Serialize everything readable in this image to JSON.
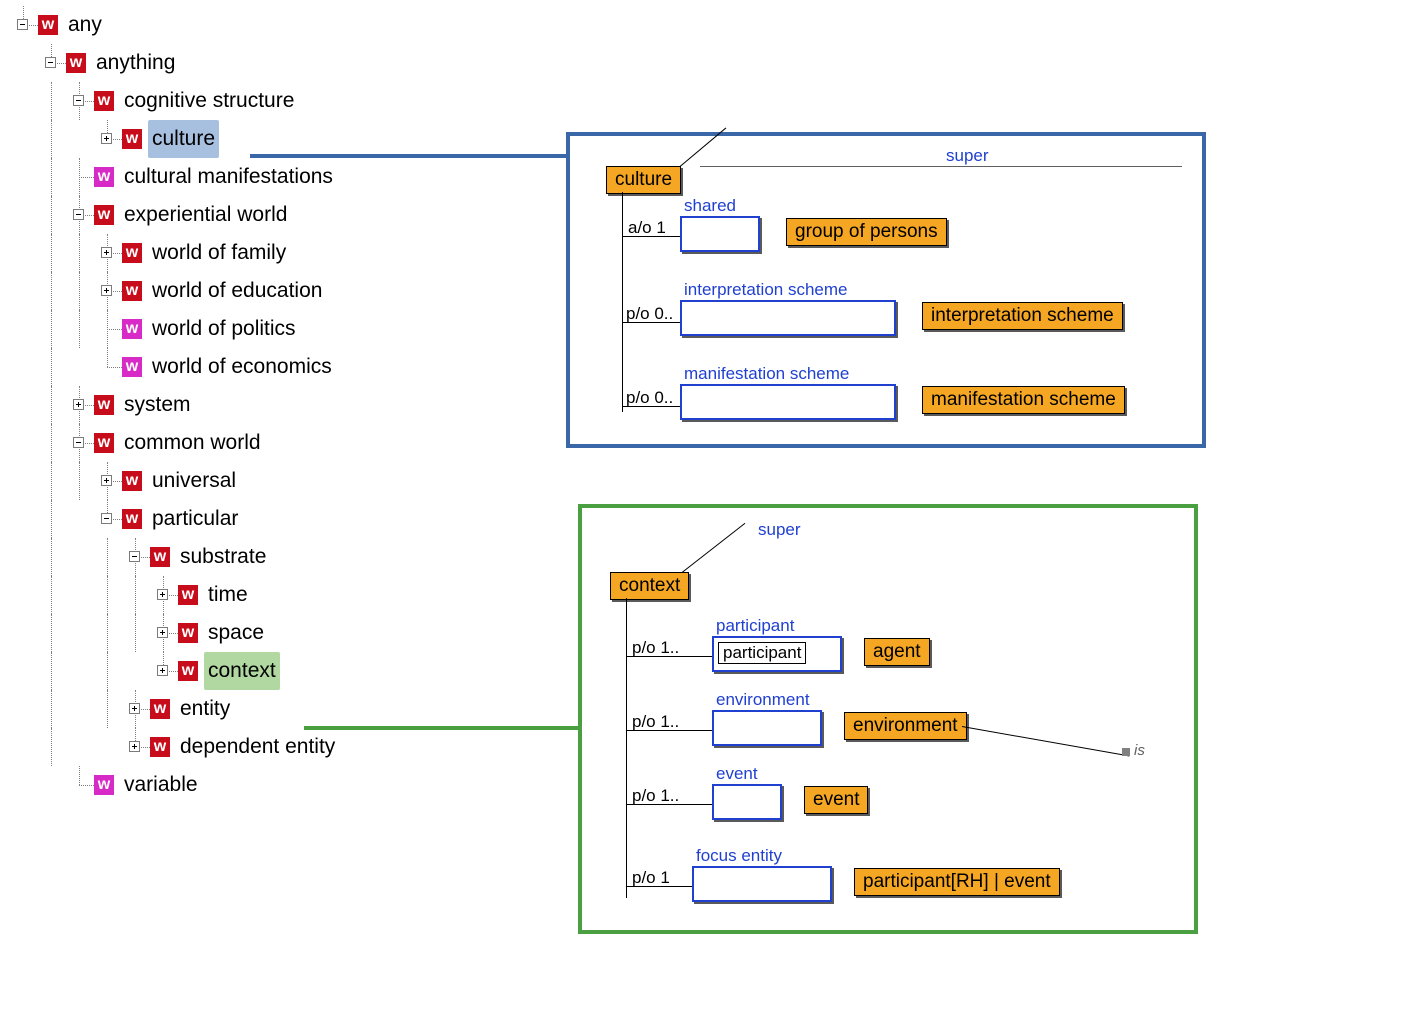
{
  "colors": {
    "icon_red": "#c70d1b",
    "icon_magenta": "#d82ac7",
    "highlight_blue": "#a8c0e0",
    "highlight_green": "#b0d8a0",
    "panel_blue": "#3a67a8",
    "panel_green": "#4aa040",
    "chip_gold": "#f5a623",
    "slot_border": "#2040d0",
    "link_text": "#2040d0",
    "tree_line": "#808080"
  },
  "icon_glyph": "w",
  "tree": {
    "nodes": [
      {
        "id": "any",
        "depth": 0,
        "toggle": "minus",
        "icon": "red",
        "label": "any"
      },
      {
        "id": "anything",
        "depth": 1,
        "toggle": "minus",
        "icon": "red",
        "label": "anything"
      },
      {
        "id": "cognitive",
        "depth": 2,
        "toggle": "minus",
        "icon": "red",
        "label": "cognitive structure"
      },
      {
        "id": "culture",
        "depth": 3,
        "toggle": "plus",
        "icon": "red",
        "label": "culture",
        "highlight": "blue"
      },
      {
        "id": "cultural-manifestations",
        "depth": 2,
        "toggle": "none",
        "icon": "magenta",
        "label": "cultural manifestations"
      },
      {
        "id": "experiential",
        "depth": 2,
        "toggle": "minus",
        "icon": "red",
        "label": "experiential world"
      },
      {
        "id": "world-family",
        "depth": 3,
        "toggle": "plus",
        "icon": "red",
        "label": "world of family"
      },
      {
        "id": "world-education",
        "depth": 3,
        "toggle": "plus",
        "icon": "red",
        "label": "world of education"
      },
      {
        "id": "world-politics",
        "depth": 3,
        "toggle": "none",
        "icon": "magenta",
        "label": "world of politics"
      },
      {
        "id": "world-economics",
        "depth": 3,
        "toggle": "none",
        "icon": "magenta",
        "label": "world of economics"
      },
      {
        "id": "system",
        "depth": 2,
        "toggle": "plus",
        "icon": "red",
        "label": "system"
      },
      {
        "id": "common-world",
        "depth": 2,
        "toggle": "minus",
        "icon": "red",
        "label": "common world"
      },
      {
        "id": "universal",
        "depth": 3,
        "toggle": "plus",
        "icon": "red",
        "label": "universal"
      },
      {
        "id": "particular",
        "depth": 3,
        "toggle": "minus",
        "icon": "red",
        "label": "particular"
      },
      {
        "id": "substrate",
        "depth": 4,
        "toggle": "minus",
        "icon": "red",
        "label": "substrate"
      },
      {
        "id": "time",
        "depth": 5,
        "toggle": "plus",
        "icon": "red",
        "label": "time"
      },
      {
        "id": "space",
        "depth": 5,
        "toggle": "plus",
        "icon": "red",
        "label": "space"
      },
      {
        "id": "context",
        "depth": 5,
        "toggle": "plus",
        "icon": "red",
        "label": "context",
        "highlight": "green"
      },
      {
        "id": "entity",
        "depth": 4,
        "toggle": "plus",
        "icon": "red",
        "label": "entity"
      },
      {
        "id": "dependent-entity",
        "depth": 4,
        "toggle": "plus",
        "icon": "red",
        "label": "dependent entity"
      },
      {
        "id": "variable",
        "depth": 2,
        "toggle": "none",
        "icon": "magenta",
        "label": "variable"
      }
    ]
  },
  "panel_culture": {
    "title": "culture",
    "super_label": "super",
    "rows": [
      {
        "card": "a/o 1",
        "slot": "shared",
        "target": "group of persons"
      },
      {
        "card": "p/o 0..",
        "slot": "interpretation scheme",
        "target": "interpretation scheme"
      },
      {
        "card": "p/o 0..",
        "slot": "manifestation scheme",
        "target": "manifestation scheme"
      }
    ]
  },
  "panel_context": {
    "title": "context",
    "super_label": "super",
    "is_label": "is",
    "rows": [
      {
        "card": "p/o 1..",
        "slot": "participant",
        "inner": "participant",
        "target": "agent"
      },
      {
        "card": "p/o 1..",
        "slot": "environment",
        "target": "environment"
      },
      {
        "card": "p/o 1..",
        "slot": "event",
        "target": "event"
      },
      {
        "card": "p/o 1",
        "slot": "focus entity",
        "target": "participant[RH] | event"
      }
    ]
  }
}
